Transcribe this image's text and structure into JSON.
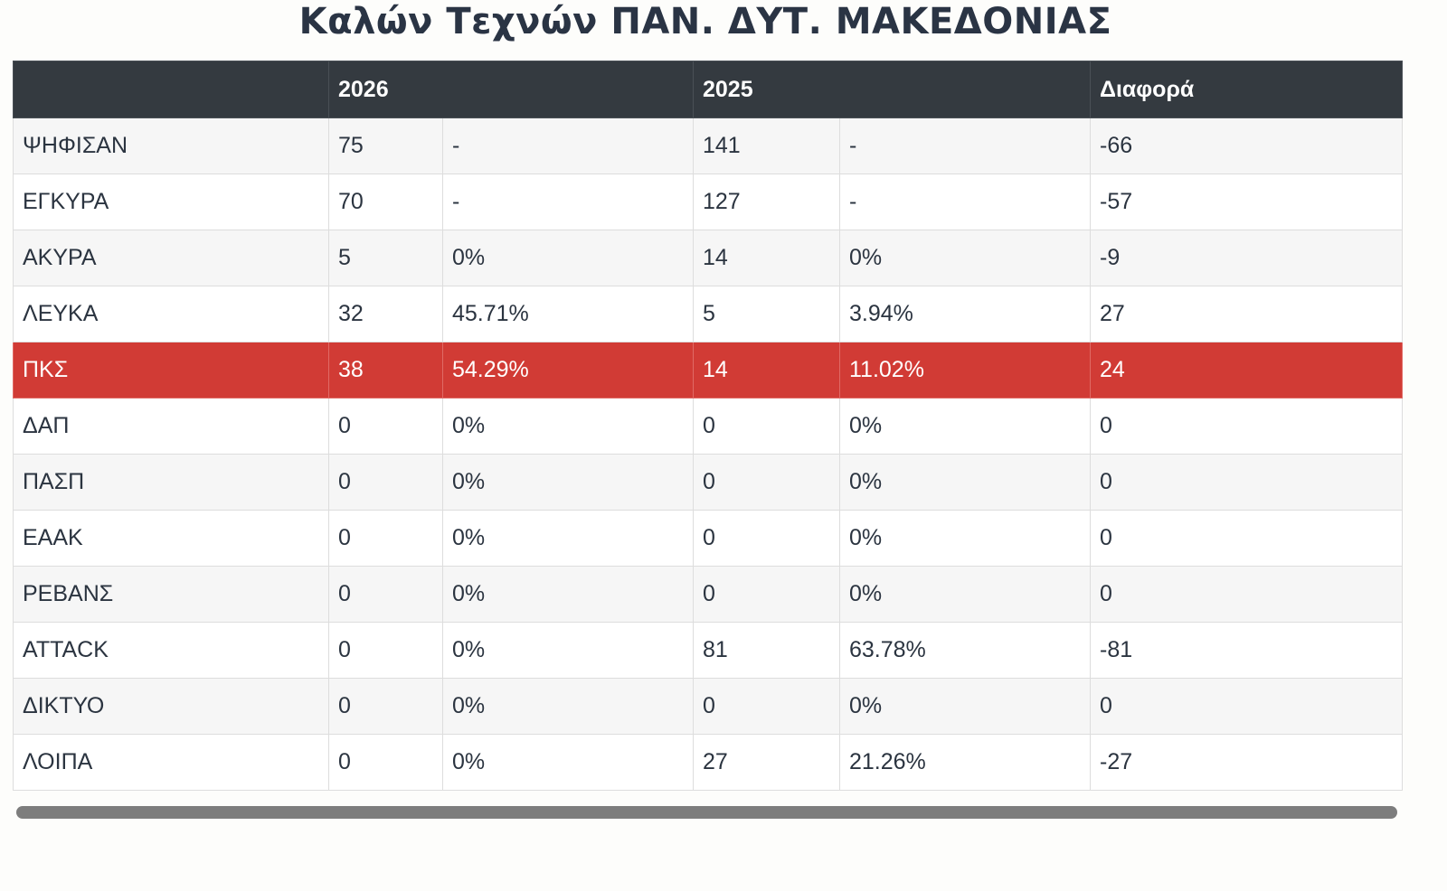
{
  "title": "Καλών Τεχνών ΠΑΝ. ΔΥΤ. ΜΑΚΕΔΟΝΙΑΣ",
  "table": {
    "header": [
      "2026",
      "2025",
      "Διαφορά"
    ],
    "rows": [
      [
        "ΨΗΦΙΣΑΝ",
        "75",
        "-",
        "141",
        "-",
        "-66"
      ],
      [
        "ΕΓΚΥΡΑ",
        "70",
        "-",
        "127",
        "-",
        "-57"
      ],
      [
        "ΑΚΥΡΑ",
        "5",
        "0%",
        "14",
        "0%",
        "-9"
      ],
      [
        "ΛΕΥΚΑ",
        "32",
        "45.71%",
        "5",
        "3.94%",
        "27"
      ],
      [
        "ΠΚΣ",
        "38",
        "54.29%",
        "14",
        "11.02%",
        "24"
      ],
      [
        "ΔΑΠ",
        "0",
        "0%",
        "0",
        "0%",
        "0"
      ],
      [
        "ΠΑΣΠ",
        "0",
        "0%",
        "0",
        "0%",
        "0"
      ],
      [
        "ΕΑΑΚ",
        "0",
        "0%",
        "0",
        "0%",
        "0"
      ],
      [
        "ΡΕΒΑΝΣ",
        "0",
        "0%",
        "0",
        "0%",
        "0"
      ],
      [
        "ΑΤΤΑCK",
        "0",
        "0%",
        "81",
        "63.78%",
        "-81"
      ],
      [
        "ΔΙΚΤΥΟ",
        "0",
        "0%",
        "0",
        "0%",
        "0"
      ],
      [
        "ΛΟΙΠΑ",
        "0",
        "0%",
        "27",
        "21.26%",
        "-27"
      ]
    ]
  }
}
